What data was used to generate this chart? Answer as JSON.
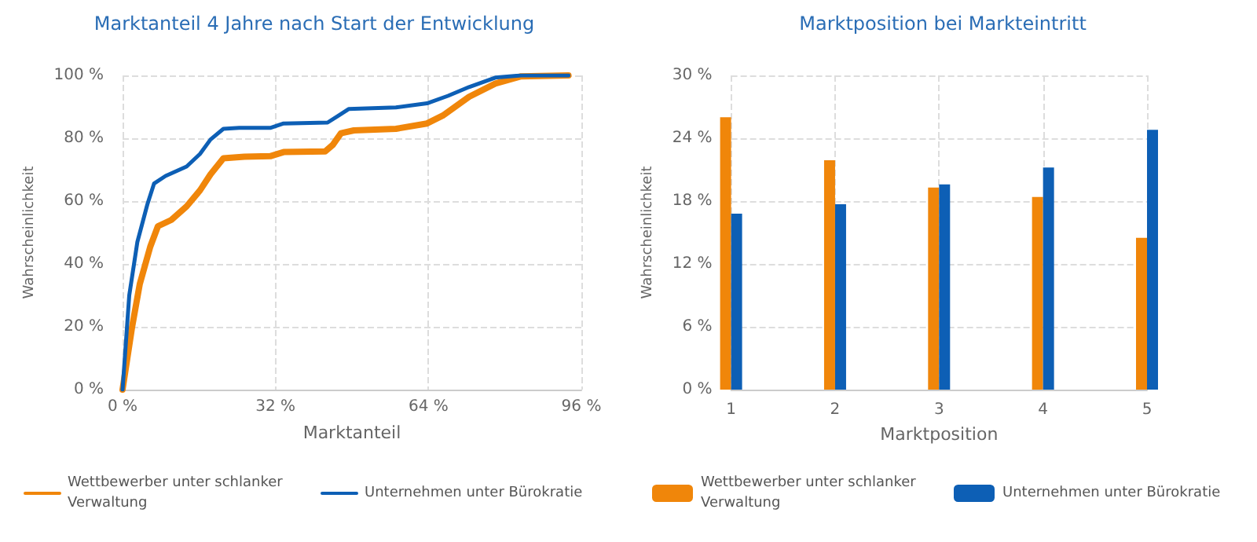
{
  "chart_data": [
    {
      "type": "line",
      "title": "Marktanteil 4 Jahre nach Start der Entwicklung",
      "xlabel": "Marktanteil",
      "ylabel": "Wahrscheinlichkeit",
      "series": [
        {
          "name": "Wettbewerber unter schlanker Verwaltung",
          "color": "#f0860a",
          "x": [
            0,
            2,
            3.6,
            5.8,
            7.4,
            10.2,
            13.4,
            16.2,
            18.4,
            21.1,
            25.5,
            30.9,
            33.7,
            42.4,
            44,
            45.7,
            48.4,
            57.2,
            63.7,
            67,
            72.5,
            78,
            83.4,
            93.3
          ],
          "values": [
            0,
            20,
            33.6,
            45.5,
            52,
            54,
            58.3,
            63.4,
            68.5,
            73.6,
            74.1,
            74.3,
            75.6,
            75.8,
            77.9,
            81.6,
            82.5,
            83,
            84.7,
            87.2,
            93.2,
            97.4,
            99.7,
            100
          ]
        },
        {
          "name": "Unternehmen unter Bürokratie",
          "color": "#0d5fb5",
          "x": [
            0,
            1.4,
            3.1,
            5.2,
            6.6,
            9,
            13.4,
            16.2,
            18.4,
            21.1,
            24.4,
            30.9,
            33.7,
            42.9,
            45.2,
            47.3,
            57.2,
            63.7,
            68.1,
            72.5,
            78,
            83.4,
            93.3
          ],
          "values": [
            0,
            30,
            47,
            59,
            65.6,
            68,
            71,
            75,
            79.6,
            83,
            83.3,
            83.3,
            84.7,
            85,
            87.2,
            89.3,
            89.8,
            91.1,
            93.5,
            96.3,
            99.3,
            100,
            100
          ]
        }
      ],
      "xlim": [
        0,
        96
      ],
      "xticks": [
        {
          "value": 0,
          "label": "0 %"
        },
        {
          "value": 32,
          "label": "32 %"
        },
        {
          "value": 64,
          "label": "64 %"
        },
        {
          "value": 96,
          "label": "96 %"
        }
      ],
      "ylim": [
        0,
        100
      ],
      "yticks": [
        {
          "value": 0,
          "label": "0 %"
        },
        {
          "value": 20,
          "label": "20 %"
        },
        {
          "value": 40,
          "label": "40 %"
        },
        {
          "value": 60,
          "label": "60 %"
        },
        {
          "value": 80,
          "label": "80 %"
        },
        {
          "value": 100,
          "label": "100 %"
        }
      ],
      "grid": true,
      "legend": "bottom left",
      "marker": "none",
      "line_style": "solid"
    },
    {
      "type": "bar",
      "title": "Marktposition bei Markteintritt",
      "xlabel": "Marktposition",
      "ylabel": "Wahrscheinlichkeit",
      "categories": [
        "1",
        "2",
        "3",
        "4",
        "5"
      ],
      "series": [
        {
          "name": "Wettbewerber unter schlanker Verwaltung",
          "color": "#f0860a",
          "values": [
            26,
            21.9,
            19.3,
            18.4,
            14.5
          ]
        },
        {
          "name": "Unternehmen unter Bürokratie",
          "color": "#0d5fb5",
          "values": [
            16.8,
            17.7,
            19.6,
            21.2,
            24.8
          ]
        }
      ],
      "ylim": [
        0,
        30
      ],
      "yticks": [
        {
          "value": 0,
          "label": "0 %"
        },
        {
          "value": 6,
          "label": "6 %"
        },
        {
          "value": 12,
          "label": "12 %"
        },
        {
          "value": 18,
          "label": "18 %"
        },
        {
          "value": 24,
          "label": "24 %"
        },
        {
          "value": 30,
          "label": "30 %"
        }
      ],
      "grid": true,
      "legend": "bottom left"
    }
  ]
}
